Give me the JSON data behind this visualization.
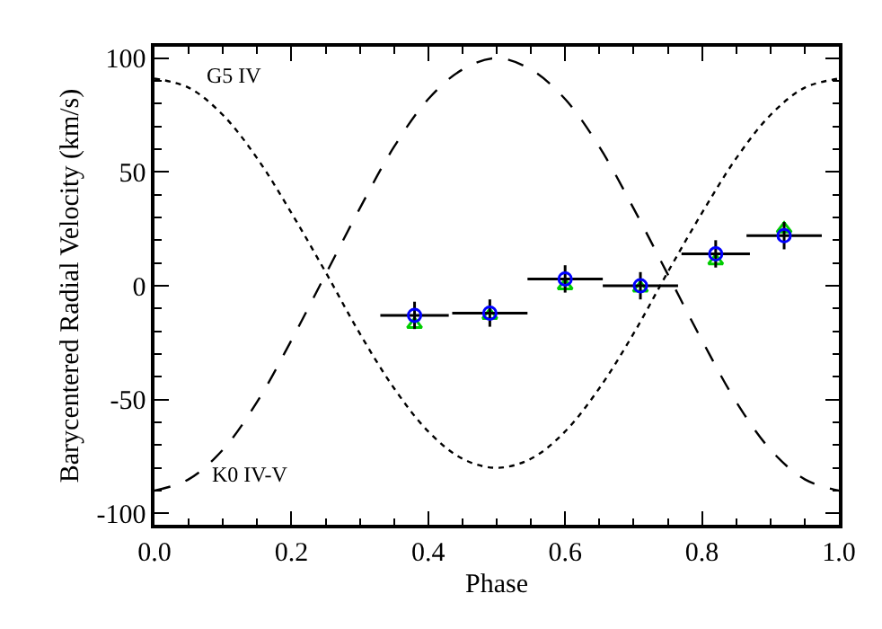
{
  "chart_data": {
    "type": "scatter",
    "xlabel": "Phase",
    "ylabel": "Barycentered Radial Velocity (km/s)",
    "xlim": [
      0,
      1
    ],
    "ylim": [
      -105,
      105
    ],
    "xticks": [
      {
        "value": 0,
        "label": "0.0"
      },
      {
        "value": 0.2,
        "label": "0.2"
      },
      {
        "value": 0.4,
        "label": "0.4"
      },
      {
        "value": 0.6,
        "label": "0.6"
      },
      {
        "value": 0.8,
        "label": "0.8"
      },
      {
        "value": 1,
        "label": "1.0"
      }
    ],
    "yticks": [
      -100,
      -50,
      0,
      50,
      100
    ],
    "grid": false,
    "x": [
      0.38,
      0.49,
      0.6,
      0.71,
      0.82,
      0.92
    ],
    "series": [
      {
        "type": "line",
        "color": "#000000",
        "line_style": "dotted",
        "marker": "none",
        "x": [
          0,
          0.05,
          0.1,
          0.15,
          0.2,
          0.25,
          0.3,
          0.35,
          0.4,
          0.45,
          0.5,
          0.55,
          0.6,
          0.65,
          0.7,
          0.75,
          0.8,
          0.85,
          0.9,
          0.95,
          1
        ],
        "values": [
          91,
          87,
          75,
          56,
          32,
          6,
          -21,
          -45,
          -64,
          -76,
          -80,
          -76,
          -64,
          -45,
          -21,
          6,
          32,
          56,
          75,
          87,
          91
        ]
      },
      {
        "type": "line",
        "color": "#000000",
        "line_style": "dashed",
        "marker": "none",
        "x": [
          0,
          0.05,
          0.1,
          0.15,
          0.2,
          0.25,
          0.3,
          0.35,
          0.4,
          0.45,
          0.5,
          0.55,
          0.6,
          0.65,
          0.7,
          0.75,
          0.8,
          0.85,
          0.9,
          0.95,
          1
        ],
        "values": [
          -90,
          -85,
          -72,
          -51,
          -24,
          5,
          34,
          61,
          82,
          95,
          100,
          95,
          82,
          61,
          34,
          5,
          -24,
          -51,
          -72,
          -85,
          -90
        ]
      },
      {
        "type": "scatter",
        "color": "#00cc00",
        "marker": "triangle",
        "values": [
          -17,
          -13,
          0,
          -1,
          11,
          25
        ]
      },
      {
        "type": "scatter",
        "color": "#0000ff",
        "marker": "circle",
        "values": [
          -13,
          -12,
          3,
          0,
          14,
          22
        ],
        "errors": [
          6,
          6,
          6,
          6,
          6,
          6
        ],
        "xerrors": [
          0.05,
          0.055,
          0.055,
          0.055,
          0.05,
          0.055
        ]
      }
    ],
    "annotations": [
      "G5 IV",
      "K0 IV-V"
    ]
  }
}
